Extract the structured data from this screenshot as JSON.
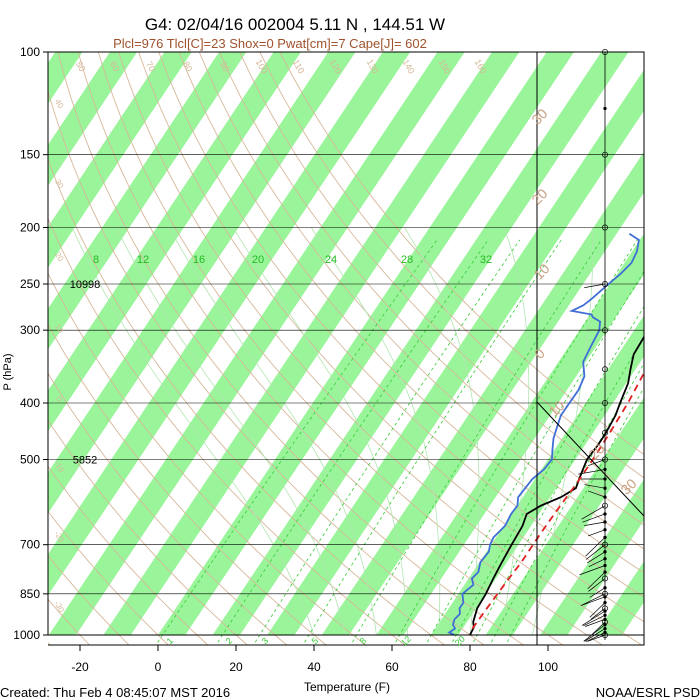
{
  "header": {
    "title": "G4: 02/04/16 002004   5.11 N , 144.51 W",
    "subtitle": "Plcl=976 Tlcl[C]=23 Shox=0 Pwat[cm]=7 Cape[J]= 602"
  },
  "footer": {
    "created": "Created: Thu Feb  4 08:45:07 MST 2016",
    "credit": "NOAA/ESRL PSD"
  },
  "colors": {
    "band": "#9af59a",
    "dry_adiabat": "#d7b89a",
    "moist_adiabat": "#b0e6b0",
    "mixing_ratio": "#33cc33",
    "temperature": "#000000",
    "dewpoint": "#3f6ed6",
    "parcel": "#dd2222",
    "isotherm_label": "#c8a082",
    "subtitle": "#a0522d"
  },
  "chart_data": {
    "type": "line",
    "title": "G4: 02/04/16 002004   5.11 N , 144.51 W",
    "xlabel": "Temperature (F)",
    "ylabel": "P (hPa)",
    "xlim": [
      -30,
      115
    ],
    "ylim": [
      1050,
      100
    ],
    "y_scale": "log",
    "x_ticks": [
      "-20",
      "0",
      "20",
      "40",
      "60",
      "80",
      "100"
    ],
    "y_ticks": [
      "100",
      "150",
      "200",
      "250",
      "300",
      "400",
      "500",
      "700",
      "850",
      "1000"
    ],
    "height_labels": [
      {
        "pressure": 250,
        "text": "10998"
      },
      {
        "pressure": 500,
        "text": "5852"
      }
    ],
    "mixing_ratio_labels": [
      "8",
      "12",
      "16",
      "20",
      "24",
      "28",
      "32"
    ],
    "mixing_ratio_labels_bottom": [
      "1",
      "2",
      "3",
      "5",
      "8",
      "12",
      "20"
    ],
    "isotherm_labels_right": [
      "30",
      "20",
      "10",
      "0",
      "10",
      "20",
      "30"
    ],
    "dry_adiabat_labels": [
      "50",
      "60",
      "70",
      "80",
      "90",
      "100",
      "110",
      "120",
      "130",
      "140",
      "150",
      "160"
    ],
    "left_labels": [
      "40",
      "30",
      "20",
      "10",
      "0",
      "-10",
      "-20",
      "-30"
    ],
    "series": [
      {
        "name": "temperature",
        "points": [
          [
            1000,
            80
          ],
          [
            970,
            79
          ],
          [
            950,
            77.5
          ],
          [
            900,
            75
          ],
          [
            850,
            73.5
          ],
          [
            800,
            71.5
          ],
          [
            750,
            69.5
          ],
          [
            700,
            67.5
          ],
          [
            650,
            65.5
          ],
          [
            620,
            63.5
          ],
          [
            600,
            65
          ],
          [
            580,
            68
          ],
          [
            560,
            69.5
          ],
          [
            540,
            68
          ],
          [
            520,
            66.5
          ],
          [
            500,
            65
          ],
          [
            470,
            64
          ],
          [
            450,
            63
          ],
          [
            420,
            61
          ],
          [
            400,
            59
          ],
          [
            370,
            56
          ],
          [
            350,
            53
          ],
          [
            330,
            50
          ],
          [
            300,
            47.5
          ],
          [
            280,
            44
          ],
          [
            260,
            41.5
          ],
          [
            250,
            40
          ],
          [
            240,
            38
          ],
          [
            230,
            37
          ],
          [
            215,
            35
          ],
          [
            205,
            34
          ]
        ]
      },
      {
        "name": "dewpoint",
        "points": [
          [
            1000,
            76
          ],
          [
            990,
            74
          ],
          [
            975,
            74.5
          ],
          [
            960,
            73
          ],
          [
            940,
            72
          ],
          [
            920,
            72
          ],
          [
            900,
            70.5
          ],
          [
            880,
            70
          ],
          [
            850,
            67.5
          ],
          [
            820,
            68
          ],
          [
            800,
            66
          ],
          [
            780,
            66
          ],
          [
            750,
            64
          ],
          [
            720,
            63.5
          ],
          [
            700,
            62
          ],
          [
            680,
            61
          ],
          [
            650,
            61
          ],
          [
            620,
            59.5
          ],
          [
            600,
            59
          ],
          [
            580,
            57
          ],
          [
            560,
            56.5
          ],
          [
            540,
            56
          ],
          [
            520,
            56.5
          ],
          [
            500,
            56
          ],
          [
            480,
            53.5
          ],
          [
            460,
            51
          ],
          [
            440,
            49
          ],
          [
            420,
            47
          ],
          [
            400,
            46
          ],
          [
            380,
            45
          ],
          [
            360,
            43
          ],
          [
            340,
            39
          ],
          [
            320,
            37
          ],
          [
            300,
            35
          ],
          [
            290,
            33
          ],
          [
            285,
            30
          ],
          [
            282,
            29
          ],
          [
            278,
            23
          ],
          [
            272,
            24.5
          ],
          [
            265,
            25
          ],
          [
            250,
            25.5
          ],
          [
            240,
            26
          ],
          [
            230,
            26
          ],
          [
            220,
            24.5
          ],
          [
            210,
            22
          ],
          [
            205,
            18
          ]
        ]
      },
      {
        "name": "parcel",
        "points": [
          [
            976,
            79
          ],
          [
            950,
            78.5
          ],
          [
            900,
            77.5
          ],
          [
            850,
            76.5
          ],
          [
            800,
            75.5
          ],
          [
            750,
            74.5
          ],
          [
            700,
            73
          ],
          [
            650,
            71.5
          ],
          [
            600,
            70
          ],
          [
            550,
            68.5
          ],
          [
            500,
            66.5
          ],
          [
            450,
            64
          ],
          [
            400,
            61
          ],
          [
            350,
            57
          ],
          [
            300,
            52.5
          ],
          [
            250,
            46
          ],
          [
            225,
            41
          ],
          [
            205,
            36
          ]
        ]
      }
    ],
    "wind_pressures": [
      1000,
      990,
      975,
      960,
      950,
      940,
      925,
      910,
      900,
      880,
      860,
      850,
      830,
      800,
      780,
      760,
      740,
      720,
      700,
      680,
      660,
      640,
      620,
      600,
      580,
      560,
      540,
      520,
      500,
      450,
      400,
      350,
      300,
      250,
      200,
      150,
      125,
      100
    ]
  }
}
